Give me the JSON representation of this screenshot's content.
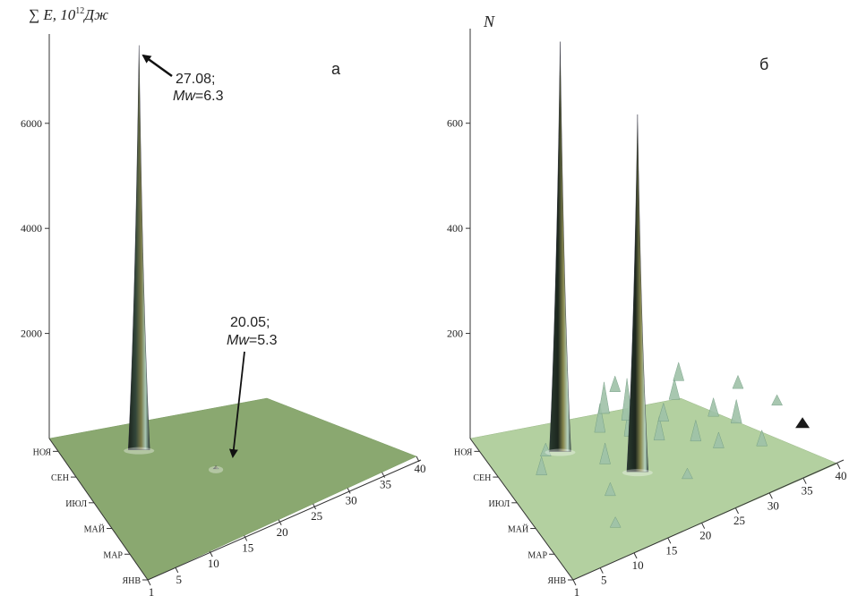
{
  "chart_data": [
    {
      "type": "surface3d",
      "panel_label": "а",
      "zlabel_prefix": "∑ E, 10",
      "zlabel_exp": "12",
      "zlabel_unit": "Дж",
      "zticks": [
        "2000",
        "4000",
        "6000"
      ],
      "zlim": [
        0,
        7700
      ],
      "x_ticks": [
        "1",
        "5",
        "10",
        "15",
        "20",
        "25",
        "30",
        "35",
        "40"
      ],
      "y_ticks": [
        "ЯНВ",
        "МАР",
        "МАЙ",
        "ИЮЛ",
        "СЕН",
        "НОЯ"
      ],
      "peaks": [
        {
          "x": 10,
          "month": 8.9,
          "value": 7700
        },
        {
          "x": 17,
          "month": 5.7,
          "value": 60
        }
      ],
      "annotations": [
        {
          "line1": "27.08;",
          "mw": "Mw",
          "val": "=6.3"
        },
        {
          "line1": "20.05;",
          "mw": "Mw",
          "val": "=5.3"
        }
      ],
      "colors": {
        "base": "#8aa870",
        "spike_dark": "#1f2a22",
        "spike_light": "#a8c8b4"
      }
    },
    {
      "type": "surface3d",
      "panel_label": "б",
      "zlabel": "N",
      "zticks": [
        "200",
        "400",
        "600"
      ],
      "zlim": [
        0,
        780
      ],
      "x_ticks": [
        "1",
        "5",
        "10",
        "15",
        "20",
        "25",
        "30",
        "35",
        "40"
      ],
      "y_ticks": [
        "ЯНВ",
        "МАР",
        "МАЙ",
        "ИЮЛ",
        "СЕН",
        "НОЯ"
      ],
      "peaks": [
        {
          "x": 10,
          "month": 8.9,
          "value": 780
        },
        {
          "x": 17,
          "month": 5.7,
          "value": 680
        }
      ],
      "colors": {
        "base": "#b3d0a0",
        "spike_dark": "#1f2a22",
        "spike_light": "#a8c8b4"
      }
    }
  ]
}
